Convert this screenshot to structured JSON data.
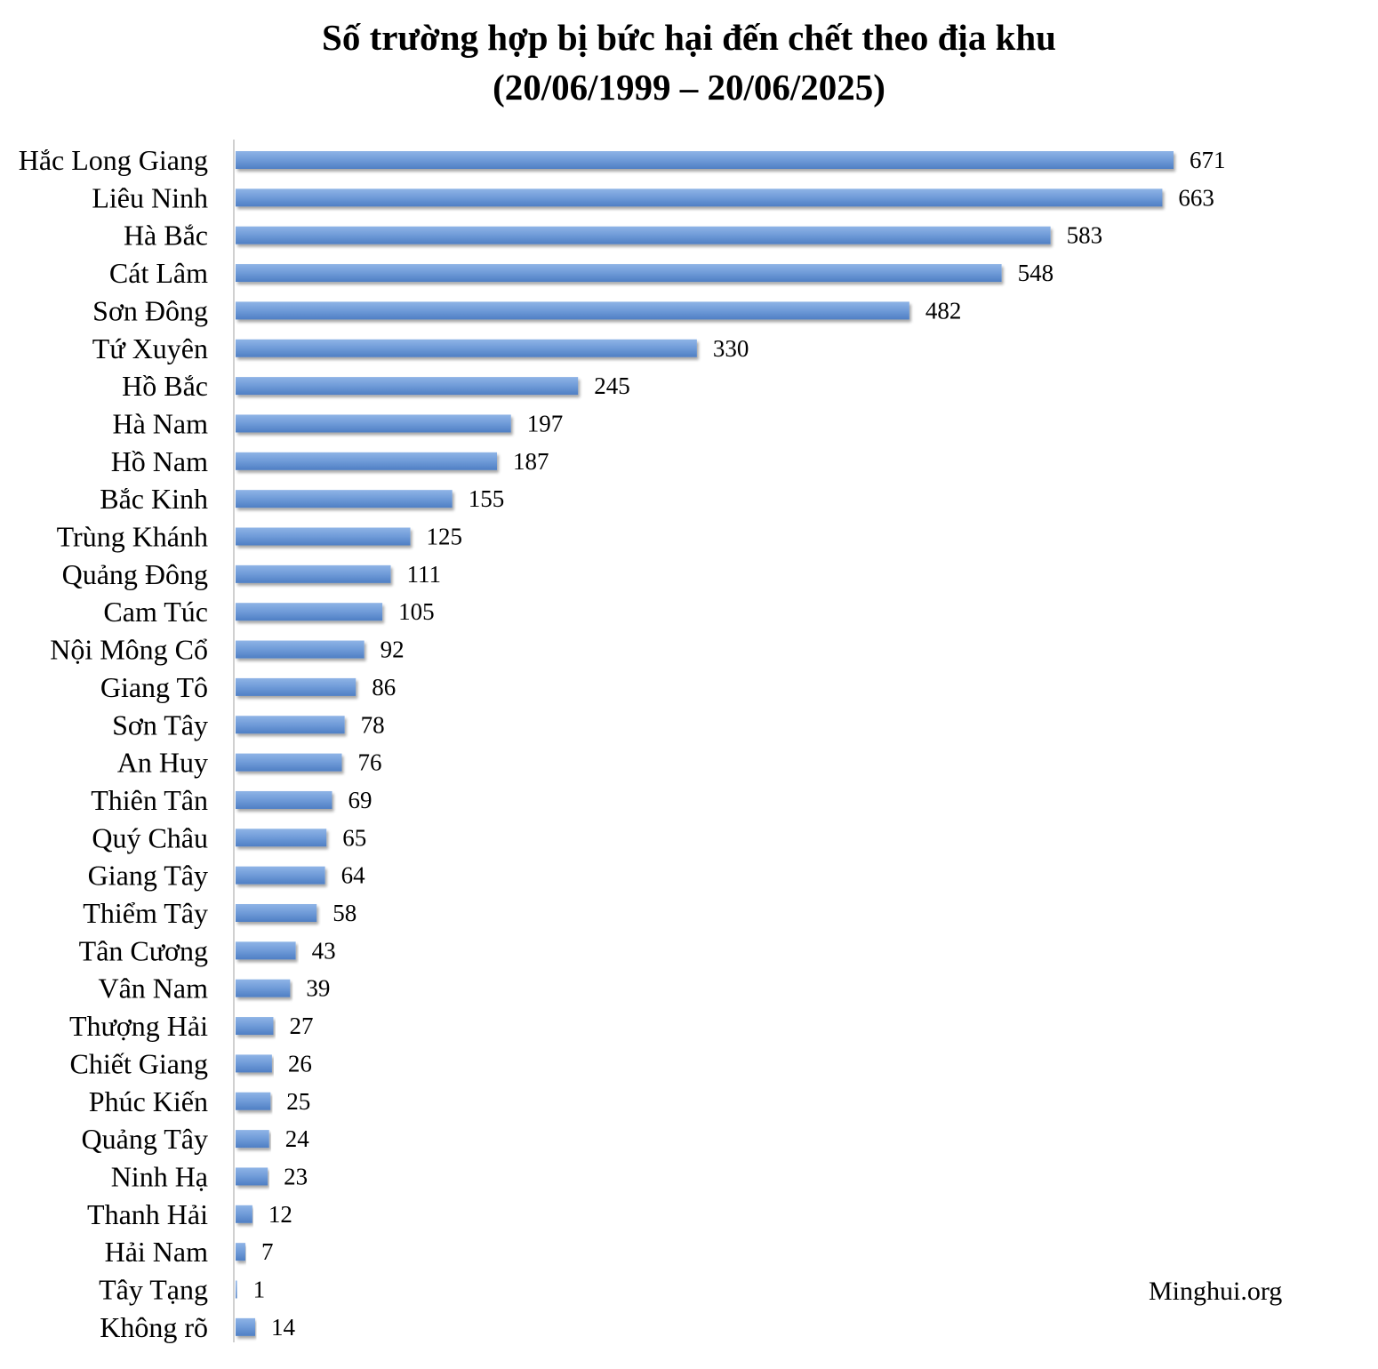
{
  "chart_data": {
    "type": "bar",
    "orientation": "horizontal",
    "title": "Số trường hợp bị bức hại đến chết theo địa khu",
    "subtitle": "(20/06/1999 – 20/06/2025)",
    "categories": [
      "Hắc Long Giang",
      "Liêu Ninh",
      "Hà Bắc",
      "Cát Lâm",
      "Sơn Đông",
      "Tứ Xuyên",
      "Hồ Bắc",
      "Hà Nam",
      "Hồ Nam",
      "Bắc Kinh",
      "Trùng Khánh",
      "Quảng Đông",
      "Cam Túc",
      "Nội Mông Cổ",
      "Giang Tô",
      "Sơn Tây",
      "An Huy",
      "Thiên Tân",
      "Quý Châu",
      "Giang Tây",
      "Thiểm Tây",
      "Tân Cương",
      "Vân Nam",
      "Thượng Hải",
      "Chiết Giang",
      "Phúc Kiến",
      "Quảng Tây",
      "Ninh Hạ",
      "Thanh Hải",
      "Hải Nam",
      "Tây Tạng",
      "Không rõ"
    ],
    "values": [
      671,
      663,
      583,
      548,
      482,
      330,
      245,
      197,
      187,
      155,
      125,
      111,
      105,
      92,
      86,
      78,
      76,
      69,
      65,
      64,
      58,
      43,
      39,
      27,
      26,
      25,
      24,
      23,
      12,
      7,
      1,
      14
    ],
    "bar_color": "#6f9bd8",
    "xlim": [
      0,
      700
    ],
    "grid": false,
    "data_labels": true
  },
  "watermark": "Minghui.org"
}
